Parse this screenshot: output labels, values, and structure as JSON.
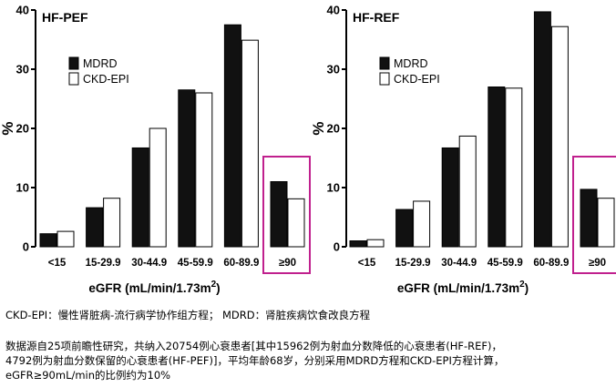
{
  "chart_data": [
    {
      "type": "bar",
      "title": "HF-PEF",
      "ylabel": "%",
      "xlabel": "eGFR (mL/min/1.73m",
      "xlabel_sup": "2",
      "xlabel_suffix": ")",
      "ylim": [
        0,
        40
      ],
      "yticks": [
        0,
        10,
        20,
        30,
        40
      ],
      "categories": [
        "<15",
        "15-29.9",
        "30-44.9",
        "45-59.9",
        "60-89.9",
        "≥90"
      ],
      "series": [
        {
          "name": "MDRD",
          "color": "#111111",
          "values": [
            2.2,
            6.6,
            16.7,
            26.5,
            37.5,
            11.0
          ]
        },
        {
          "name": "CKD-EPI",
          "color": "#ffffff",
          "values": [
            2.6,
            8.2,
            20.0,
            26.0,
            34.9,
            8.1
          ]
        }
      ],
      "legend": "top-left",
      "highlight_category": "≥90",
      "highlight_color": "#c0208e"
    },
    {
      "type": "bar",
      "title": "HF-REF",
      "ylabel": "%",
      "xlabel": "eGFR (mL/min/1.73m",
      "xlabel_sup": "2",
      "xlabel_suffix": ")",
      "ylim": [
        0,
        40
      ],
      "yticks": [
        0,
        10,
        20,
        30,
        40
      ],
      "categories": [
        "<15",
        "15-29.9",
        "30-44.9",
        "45-59.9",
        "60-89.9",
        "≥90"
      ],
      "series": [
        {
          "name": "MDRD",
          "color": "#111111",
          "values": [
            1.0,
            6.3,
            16.7,
            27.0,
            39.7,
            9.7
          ]
        },
        {
          "name": "CKD-EPI",
          "color": "#ffffff",
          "values": [
            1.2,
            7.7,
            18.7,
            26.8,
            37.2,
            8.2
          ]
        }
      ],
      "legend": "top-left",
      "highlight_category": "≥90",
      "highlight_color": "#c0208e"
    }
  ],
  "notes": {
    "legend_note": "CKD-EPI：慢性肾脏病-流行病学协作组方程；  MDRD：肾脏疾病饮食改良方程",
    "summary_lines": [
      "数据源自25项前瞻性研究，共纳入20754例心衰患者[其中15962例为射血分数降低的心衰患者(HF-REF)，",
      "4792例为射血分数保留的心衰患者(HF-PEF)]，平均年龄68岁，分别采用MDRD方程和CKD-EPI方程计算，",
      "eGFR≥90mL/min的比例约为10%"
    ]
  }
}
